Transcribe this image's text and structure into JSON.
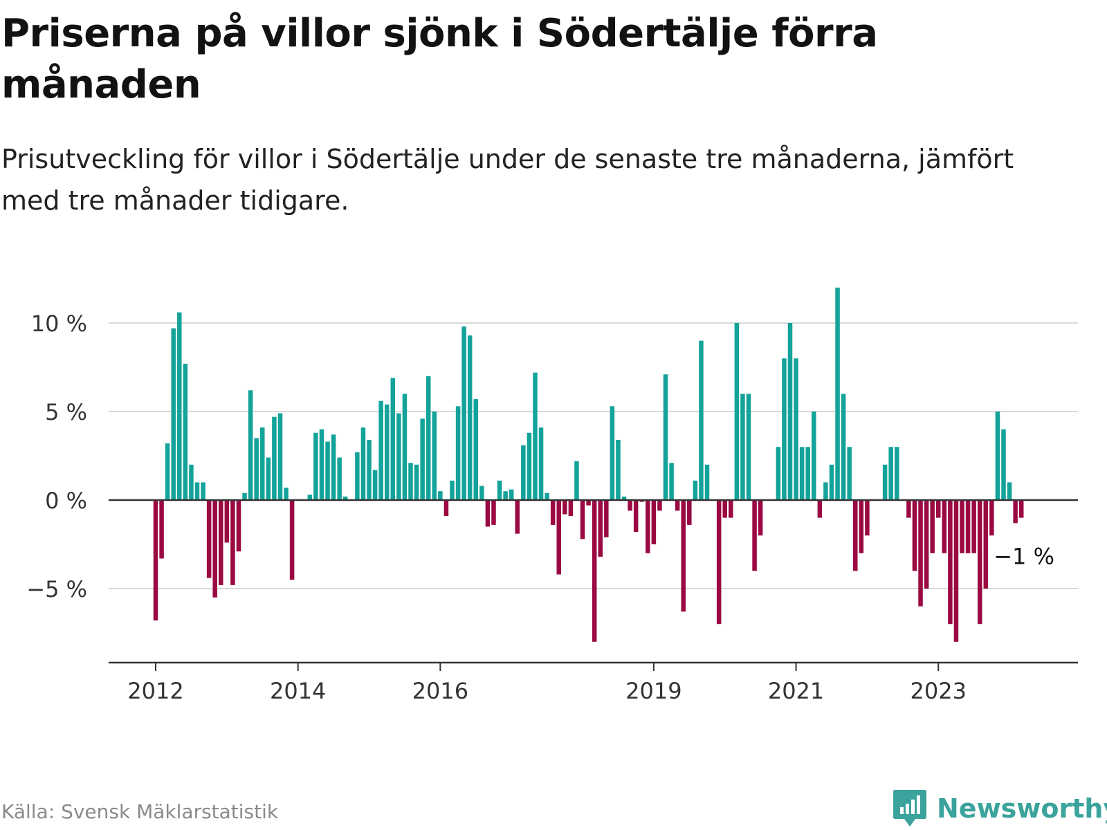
{
  "title": "Priserna på villor sjönk i Södertälje förra månaden",
  "subtitle": "Prisutveckling för villor i Södertälje under de senaste tre månaderna, jämfört med tre månader tidigare.",
  "source": "Källa: Svensk Mäklarstatistik",
  "brand": "Newsworthy",
  "colors": {
    "positive": "#13a39a",
    "negative": "#9b0942",
    "grid": "#d9d9d9",
    "axis": "#333333",
    "brand": "#3aa39b"
  },
  "chart_data": {
    "type": "bar",
    "title": "Priserna på villor sjönk i Södertälje förra månaden",
    "xlabel": "",
    "ylabel": "",
    "ylim": [
      -9.25,
      12
    ],
    "yticks": [
      -5,
      0,
      5,
      10
    ],
    "ytick_labels": [
      "−5 %",
      "0 %",
      "5 %",
      "10 %"
    ],
    "xticks": [
      {
        "label": "2012",
        "index": 0
      },
      {
        "label": "2014",
        "index": 24
      },
      {
        "label": "2016",
        "index": 48
      },
      {
        "label": "2019",
        "index": 84
      },
      {
        "label": "2021",
        "index": 108
      },
      {
        "label": "2023",
        "index": 132
      }
    ],
    "start": "2012-01",
    "last_value_label": "−1 %",
    "values": [
      -6.8,
      -3.3,
      3.2,
      9.7,
      10.6,
      7.7,
      2.0,
      1.0,
      1.0,
      -4.4,
      -5.5,
      -4.8,
      -2.4,
      -4.8,
      -2.9,
      0.4,
      6.2,
      3.5,
      4.1,
      2.4,
      4.7,
      4.9,
      0.7,
      -4.5,
      0.0,
      0.0,
      0.3,
      3.8,
      4.0,
      3.3,
      3.7,
      2.4,
      0.2,
      0.0,
      2.7,
      4.1,
      3.4,
      1.7,
      5.6,
      5.4,
      6.9,
      4.9,
      6.0,
      2.1,
      2.0,
      4.6,
      7.0,
      5.0,
      0.5,
      -0.9,
      1.1,
      5.3,
      9.8,
      9.3,
      5.7,
      0.8,
      -1.5,
      -1.4,
      1.1,
      0.5,
      0.6,
      -1.9,
      3.1,
      3.8,
      7.2,
      4.1,
      0.4,
      -1.4,
      -4.2,
      -0.8,
      -0.9,
      2.2,
      -2.2,
      -0.3,
      -8.0,
      -3.2,
      -2.1,
      5.3,
      3.4,
      0.2,
      -0.6,
      -1.8,
      -0.1,
      -3.0,
      -2.5,
      -0.6,
      7.1,
      2.1,
      -0.6,
      -6.3,
      -1.4,
      1.1,
      9.0,
      2.0,
      0.0,
      -7.0,
      -1.0,
      -1.0,
      10.0,
      6.0,
      6.0,
      -4.0,
      -2.0,
      0.0,
      0.0,
      3.0,
      8.0,
      10.0,
      8.0,
      3.0,
      3.0,
      5.0,
      -1.0,
      1.0,
      2.0,
      12.0,
      6.0,
      3.0,
      -4.0,
      -3.0,
      -2.0,
      0.0,
      0.0,
      2.0,
      3.0,
      3.0,
      0.0,
      -1.0,
      -4.0,
      -6.0,
      -5.0,
      -3.0,
      -1.0,
      -3.0,
      -7.0,
      -8.0,
      -3.0,
      -3.0,
      -3.0,
      -7.0,
      -5.0,
      -2.0,
      5.0,
      4.0,
      1.0,
      -1.3,
      -1.0
    ]
  }
}
